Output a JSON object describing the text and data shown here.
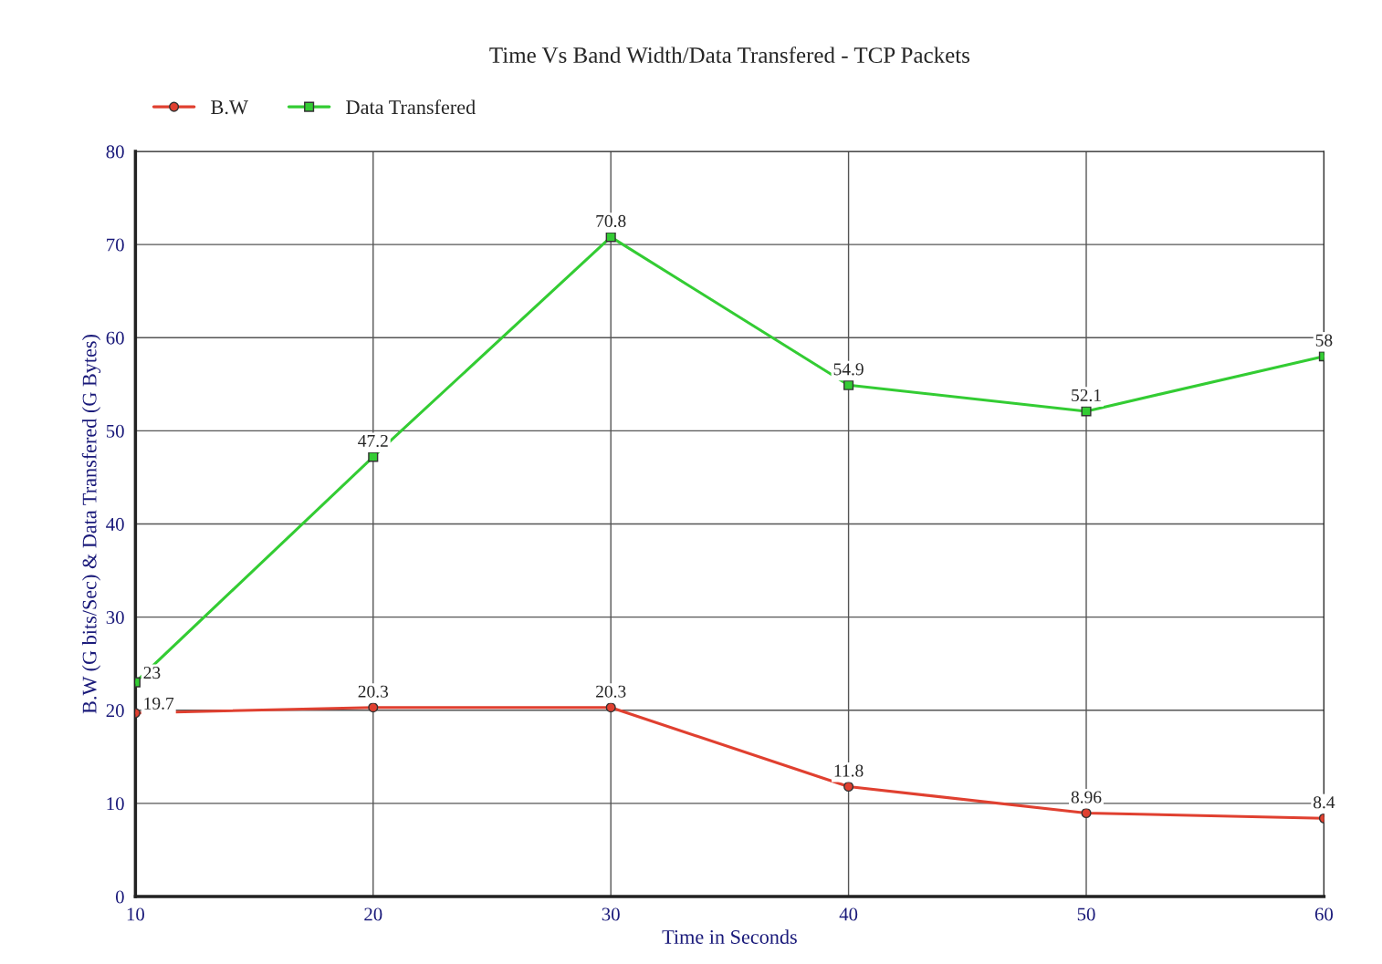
{
  "chart_data": {
    "type": "line",
    "title": "Time Vs Band Width/Data Transfered - TCP Packets",
    "xlabel": "Time in Seconds",
    "ylabel": "B.W (G bits/Sec) & Data Transfered (G Bytes)",
    "x": [
      10,
      20,
      30,
      40,
      50,
      60
    ],
    "series": [
      {
        "name": "B.W",
        "color": "#e04030",
        "marker": "circle",
        "values": [
          19.7,
          20.3,
          20.3,
          11.8,
          8.96,
          8.4
        ]
      },
      {
        "name": "Data Transfered",
        "color": "#33cc33",
        "marker": "square",
        "values": [
          23,
          47.2,
          70.8,
          54.9,
          52.1,
          58
        ]
      }
    ],
    "xlim": [
      10,
      60
    ],
    "xticks": [
      10,
      20,
      30,
      40,
      50,
      60
    ],
    "ylim": [
      0,
      80
    ],
    "yticks": [
      0,
      10,
      20,
      30,
      40,
      50,
      60,
      70,
      80
    ],
    "grid": true,
    "legend": "top left",
    "data_labels": true,
    "line_style": "solid"
  }
}
